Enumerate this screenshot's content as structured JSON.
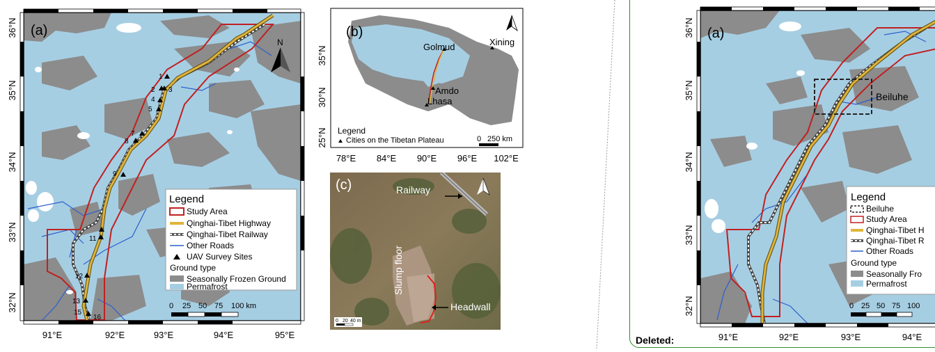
{
  "colors": {
    "permafrost": "#a6cee3",
    "seasonal": "#8c8c8c",
    "study_area": "#c02020",
    "highway": "#d4a62a",
    "roads": "#2b5fcc",
    "review_border": "#2e8b2e"
  },
  "panel_a": {
    "label": "(a)",
    "north_label": "N",
    "lat_ticks": [
      "36°N",
      "35°N",
      "34°N",
      "33°N",
      "32°N"
    ],
    "lon_ticks": [
      "91°E",
      "92°E",
      "93°E",
      "94°E",
      "95°E"
    ],
    "sites": [
      {
        "id": "1"
      },
      {
        "id": "2"
      },
      {
        "id": "3"
      },
      {
        "id": "4"
      },
      {
        "id": "5"
      },
      {
        "id": "7"
      },
      {
        "id": "8"
      },
      {
        "id": "9"
      },
      {
        "id": "11"
      },
      {
        "id": "12"
      },
      {
        "id": "13"
      },
      {
        "id": "15"
      },
      {
        "id": "16"
      }
    ],
    "legend": {
      "title": "Legend",
      "study_area": "Study Area",
      "highway": "Qinghai-Tibet Highway",
      "railway": "Qinghai-Tibet Railway",
      "roads": "Other Roads",
      "sites": "UAV Survey Sites",
      "ground_type": "Ground type",
      "seasonal": "Seasonally Frozen Ground",
      "permafrost": "Permafrost"
    },
    "scale": [
      "0",
      "25",
      "50",
      "75",
      "100 km"
    ]
  },
  "panel_b": {
    "label": "(b)",
    "lat_ticks": [
      "35°N",
      "30°N",
      "25°N"
    ],
    "lon_ticks": [
      "78°E",
      "84°E",
      "90°E",
      "96°E",
      "102°E"
    ],
    "cities": [
      "Golmud",
      "Xining",
      "Amdo",
      "Lhasa"
    ],
    "legend_title": "Legend",
    "legend_item": "Cities on the Tibetan Plateau",
    "scale": [
      "0",
      "250 km"
    ]
  },
  "panel_c": {
    "label": "(c)",
    "railway": "Railway",
    "slump_floor": "Slump floor",
    "headwall": "Headwall",
    "scale": [
      "0",
      "20",
      "40 m"
    ]
  },
  "review": {
    "label": "Deleted:",
    "panel_label": "(a)",
    "lat_ticks": [
      "36°N",
      "35°N",
      "34°N",
      "33°N",
      "32°N"
    ],
    "lon_ticks": [
      "91°E",
      "92°E",
      "93°E",
      "94°E"
    ],
    "beiluhe": "Beiluhe",
    "legend": {
      "title": "Legend",
      "beiluhe": "Beiluhe",
      "study_area": "Study Area",
      "highway": "Qinghai-Tibet H",
      "railway": "Qinghai-Tibet R",
      "roads": "Other Roads",
      "ground_type": "Ground type",
      "seasonal": "Seasonally Fro",
      "permafrost": "Permafrost"
    },
    "scale": [
      "0",
      "25",
      "50",
      "75",
      "100"
    ]
  }
}
